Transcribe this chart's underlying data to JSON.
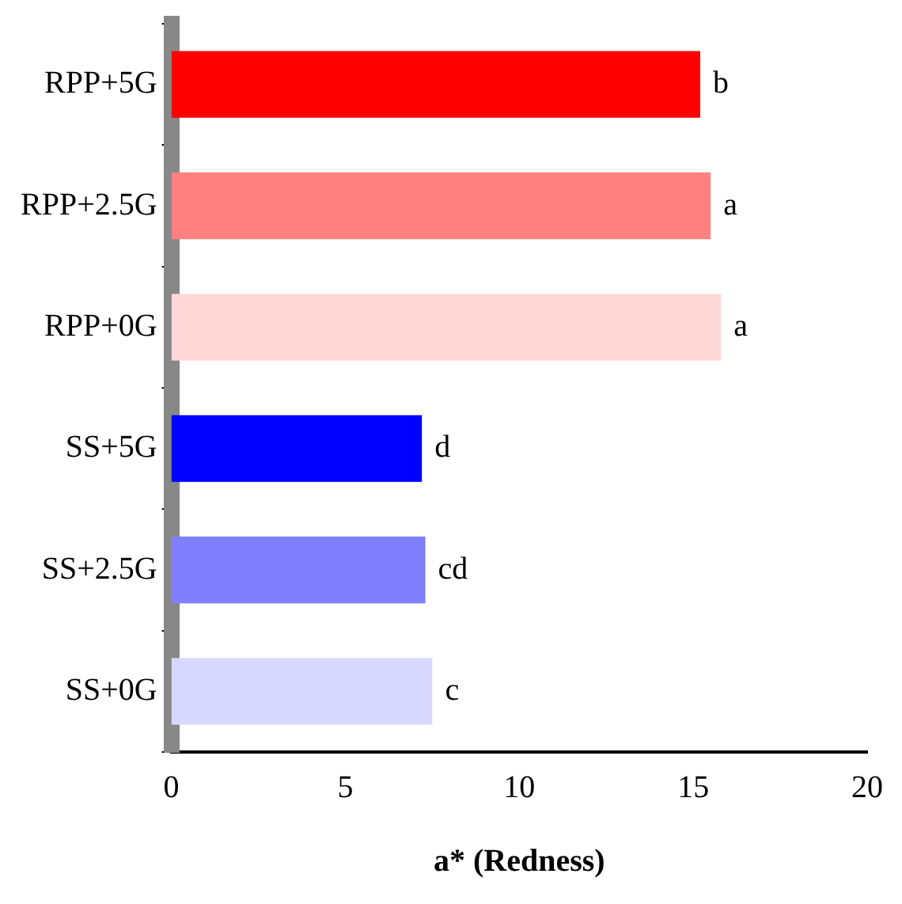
{
  "chart_data": {
    "type": "bar",
    "orientation": "horizontal",
    "xlabel": "a* (Redness)",
    "categories": [
      "RPP+5G",
      "RPP+2.5G",
      "RPP+0G",
      "SS+5G",
      "SS+2.5G",
      "SS+0G"
    ],
    "values": [
      15.2,
      15.5,
      15.8,
      7.2,
      7.3,
      7.5
    ],
    "colors": [
      "#ff0000",
      "#ff8080",
      "#ffd8d8",
      "#0000ff",
      "#8080ff",
      "#d8d8ff"
    ],
    "value_labels": [
      "b",
      "a",
      "a",
      "d",
      "cd",
      "c"
    ],
    "xlim": [
      0,
      20
    ],
    "xticks": [
      0,
      5,
      10,
      15,
      20
    ],
    "grid": false,
    "legend": false
  }
}
